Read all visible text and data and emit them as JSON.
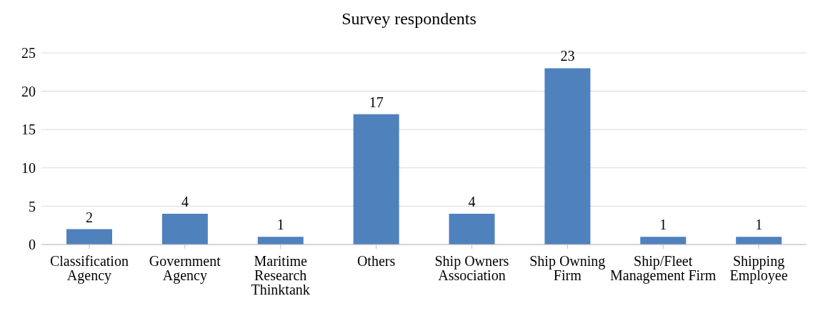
{
  "chart_data": {
    "type": "bar",
    "title": "Survey respondents",
    "categories": [
      "Classification Agency",
      "Government Agency",
      "Maritime Research Thinktank",
      "Others",
      "Ship Owners Association",
      "Ship Owning Firm",
      "Ship/Fleet Management Firm",
      "Shipping Employee"
    ],
    "values": [
      2,
      4,
      1,
      17,
      4,
      23,
      1,
      1
    ],
    "color": "#4f81bd",
    "ylim": [
      0,
      25
    ],
    "yticks": [
      0,
      5,
      10,
      15,
      20,
      25
    ],
    "grid": "y",
    "data_labels": true
  }
}
